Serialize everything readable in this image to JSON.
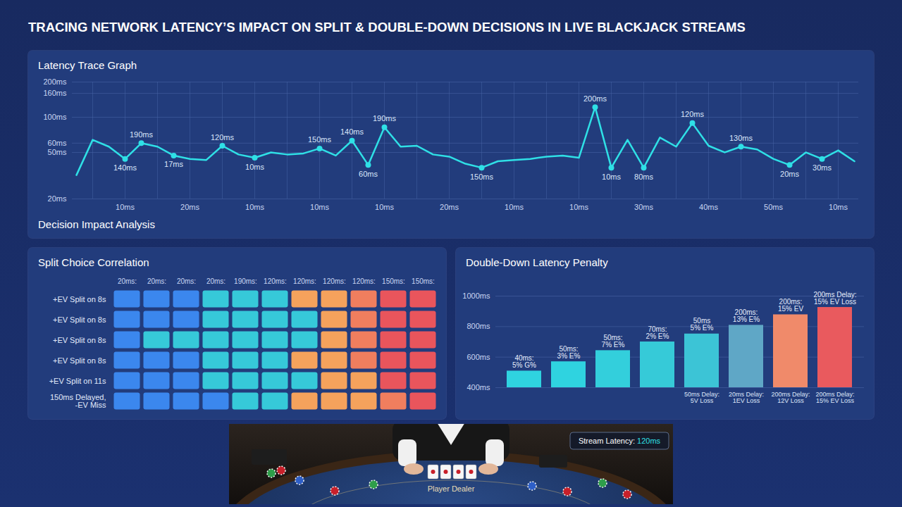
{
  "title": "TRACING NETWORK LATENCY’S IMPACT ON SPLIT & DOUBLE-DOWN DECISIONS IN LIVE BLACKJACK STREAMS",
  "section_label": "Decision Impact Analysis",
  "chart_data": [
    {
      "type": "line",
      "title": "Latency Trace Graph",
      "categories": [
        null,
        null,
        null,
        "10ms",
        null,
        null,
        null,
        "20ms",
        null,
        null,
        null,
        "10ms",
        null,
        null,
        null,
        "10ms",
        null,
        null,
        null,
        "10ms",
        null,
        null,
        null,
        "20ms",
        null,
        null,
        null,
        "10ms",
        null,
        null,
        null,
        "10ms",
        null,
        null,
        null,
        "30ms",
        null,
        null,
        null,
        "40ms",
        null,
        null,
        null,
        "50ms",
        null,
        null,
        null,
        "10ms",
        null
      ],
      "values": [
        32,
        64,
        56,
        44,
        60,
        56,
        47,
        44,
        43,
        57,
        48,
        45,
        50,
        48,
        49,
        54,
        47,
        63,
        39,
        82,
        56,
        57,
        48,
        46,
        40,
        37,
        42,
        43,
        44,
        46,
        47,
        45,
        122,
        37,
        64,
        37,
        67,
        56,
        89,
        57,
        50,
        56,
        53,
        44,
        39,
        50,
        44,
        52,
        42
      ],
      "point_labels": [
        null,
        null,
        null,
        "140ms",
        "190ms",
        null,
        "17ms",
        null,
        null,
        "120ms",
        null,
        "10ms",
        null,
        null,
        null,
        "150ms",
        null,
        "140ms",
        "60ms",
        "190ms",
        null,
        null,
        null,
        null,
        null,
        "150ms",
        null,
        null,
        null,
        null,
        null,
        null,
        "200ms",
        "10ms",
        null,
        "80ms",
        null,
        null,
        "120ms",
        null,
        null,
        "130ms",
        null,
        null,
        "20ms",
        null,
        "30ms",
        null,
        null
      ],
      "color": "#2fe0e6",
      "marker": "circle",
      "line_style": "solid",
      "log": "y",
      "ylim": [
        20,
        200
      ],
      "yticks": [
        {
          "value": 20,
          "label": "20ms"
        },
        {
          "value": 50,
          "label": "50ms"
        },
        {
          "value": 60,
          "label": "60ms"
        },
        {
          "value": 100,
          "label": "100ms"
        },
        {
          "value": 160,
          "label": "160ms"
        },
        {
          "value": 200,
          "label": "200ms"
        }
      ],
      "grid": true
    },
    {
      "type": "heatmap",
      "title": "Split Choice Correlation",
      "columns": [
        "20ms:",
        "20ms:",
        "20ms:",
        "20ms:",
        "190ms:",
        "120ms:",
        "120ms:",
        "120ms:",
        "120ms:",
        "150ms:",
        "150ms:"
      ],
      "rows": [
        "+EV Split on 8s",
        "+EV Split on 8s",
        "+EV Split on 8s",
        "+EV Split on 8s",
        "+EV Split on 11s",
        "150ms Delayed, -EV Miss"
      ],
      "cell_colors": [
        [
          "#3b87ee",
          "#3b87ee",
          "#3b87ee",
          "#36c9d9",
          "#36c9d9",
          "#36c9d9",
          "#f5a25c",
          "#f5a25c",
          "#f07e5e",
          "#e9555c",
          "#e9555c"
        ],
        [
          "#3b87ee",
          "#3b87ee",
          "#3b87ee",
          "#36c9d9",
          "#36c9d9",
          "#36c9d9",
          "#36c9d9",
          "#f5a25c",
          "#f07e5e",
          "#e9555c",
          "#e9555c"
        ],
        [
          "#3b87ee",
          "#36c9d9",
          "#36c9d9",
          "#36c9d9",
          "#36c9d9",
          "#36c9d9",
          "#36c9d9",
          "#f5a25c",
          "#f07e5e",
          "#e9555c",
          "#e9555c"
        ],
        [
          "#3b87ee",
          "#3b87ee",
          "#3b87ee",
          "#36c9d9",
          "#36c9d9",
          "#36c9d9",
          "#f5a25c",
          "#f5a25c",
          "#f07e5e",
          "#e9555c",
          "#e9555c"
        ],
        [
          "#3b87ee",
          "#3b87ee",
          "#3b87ee",
          "#36c9d9",
          "#36c9d9",
          "#36c9d9",
          "#36c9d9",
          "#f5a25c",
          "#f5a25c",
          "#e9555c",
          "#e9555c"
        ],
        [
          "#3b87ee",
          "#3b87ee",
          "#3b87ee",
          "#3b87ee",
          "#36c9d9",
          "#36c9d9",
          "#f5a25c",
          "#f5a25c",
          "#f5a25c",
          "#f07e5e",
          "#e9555c"
        ]
      ]
    },
    {
      "type": "bar",
      "title": "Double-Down Latency Penalty",
      "categories": [
        null,
        null,
        null,
        null,
        "50ms Delay: 5V Loss",
        "20ms Delay: 1EV Loss",
        "200ms Delay: 12V Loss",
        "200ms Delay: 15% EV Loss"
      ],
      "values": [
        509,
        570,
        643,
        700,
        752,
        809,
        878,
        926
      ],
      "colors": [
        "#2fd3e0",
        "#2fd3e0",
        "#33cfdc",
        "#36cad8",
        "#3cc4d6",
        "#5fa7c6",
        "#f08a6a",
        "#e95a5e"
      ],
      "annotations": [
        [
          "40ms:",
          "5% G%"
        ],
        [
          "50ms:",
          "3% E%"
        ],
        [
          "50ms:",
          "7% E%"
        ],
        [
          "70ms:",
          "2% E%"
        ],
        [
          "50ms",
          "5% E%"
        ],
        [
          "200ms:",
          "13% E%"
        ],
        [
          "200ms:",
          "15% EV"
        ],
        [
          "200ms Delay:",
          "15% EV Loss"
        ]
      ],
      "ylim": [
        400,
        1000
      ],
      "yticks": [
        {
          "value": 400,
          "label": "400ms"
        },
        {
          "value": 600,
          "label": "600ms"
        },
        {
          "value": 800,
          "label": "800ms"
        },
        {
          "value": 1000,
          "label": "1000ms"
        }
      ],
      "grid": true
    }
  ],
  "photo": {
    "badge_label": "Stream Latency:",
    "badge_value": "120ms",
    "table_text": "Player Dealer"
  }
}
